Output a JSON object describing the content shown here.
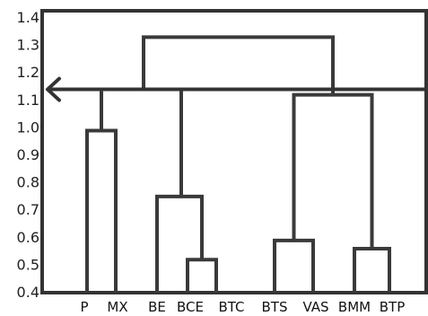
{
  "chart_data": {
    "type": "dendrogram",
    "title": "",
    "xlabel": "",
    "ylabel": "",
    "ylim": [
      0.4,
      1.4
    ],
    "yticks": [
      "1.4",
      "1.3",
      "1.2",
      "1.1",
      "1.0",
      "0.9",
      "0.8",
      "0.7",
      "0.6",
      "0.5",
      "0.4"
    ],
    "leaves": [
      "P",
      "MX",
      "BE",
      "BCE",
      "BTC",
      "BTS",
      "VAS",
      "BMM",
      "BTP"
    ],
    "merges": [
      {
        "items": [
          "P",
          "MX"
        ],
        "height": 0.99
      },
      {
        "items": [
          "BCE",
          "BTC"
        ],
        "height": 0.52
      },
      {
        "items": [
          "BE",
          "BCE-BTC"
        ],
        "height": 0.75
      },
      {
        "items": [
          "P-MX",
          "BE-BCE-BTC"
        ],
        "height": 1.33
      },
      {
        "items": [
          "BTS",
          "VAS"
        ],
        "height": 0.59
      },
      {
        "items": [
          "BMM",
          "BTP"
        ],
        "height": 0.56
      },
      {
        "items": [
          "BTS-VAS",
          "BMM-BTP"
        ],
        "height": 1.12
      },
      {
        "items": [
          "all"
        ],
        "height": 1.33
      }
    ],
    "cut_line": 1.14,
    "grid": false
  }
}
